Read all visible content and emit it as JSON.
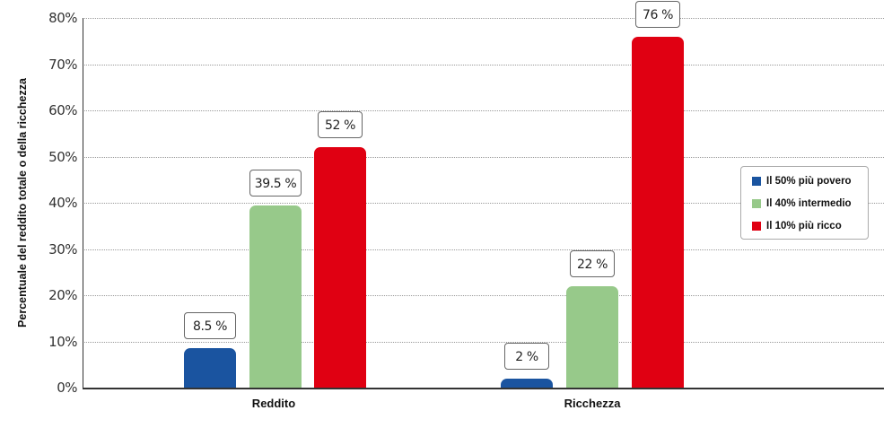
{
  "chart_data": {
    "type": "bar",
    "title": "",
    "xlabel": "",
    "ylabel": "Percentuale del reddito totale o della ricchezza",
    "ylim": [
      0,
      80
    ],
    "yticks": [
      "0%",
      "10%",
      "20%",
      "30%",
      "40%",
      "50%",
      "60%",
      "70%",
      "80%"
    ],
    "grid": true,
    "legend_position": "right",
    "categories": [
      "Reddito",
      "Ricchezza"
    ],
    "series": [
      {
        "name": "Il 50% più povero",
        "color": "#1a54a0",
        "values": [
          8.5,
          2
        ],
        "labels": [
          "8.5 %",
          "2 %"
        ]
      },
      {
        "name": "Il 40% intermedio",
        "color": "#97c98a",
        "values": [
          39.5,
          22
        ],
        "labels": [
          "39.5 %",
          "22 %"
        ]
      },
      {
        "name": "Il 10% più ricco",
        "color": "#e00012",
        "values": [
          52,
          76
        ],
        "labels": [
          "52 %",
          "76 %"
        ]
      }
    ]
  }
}
